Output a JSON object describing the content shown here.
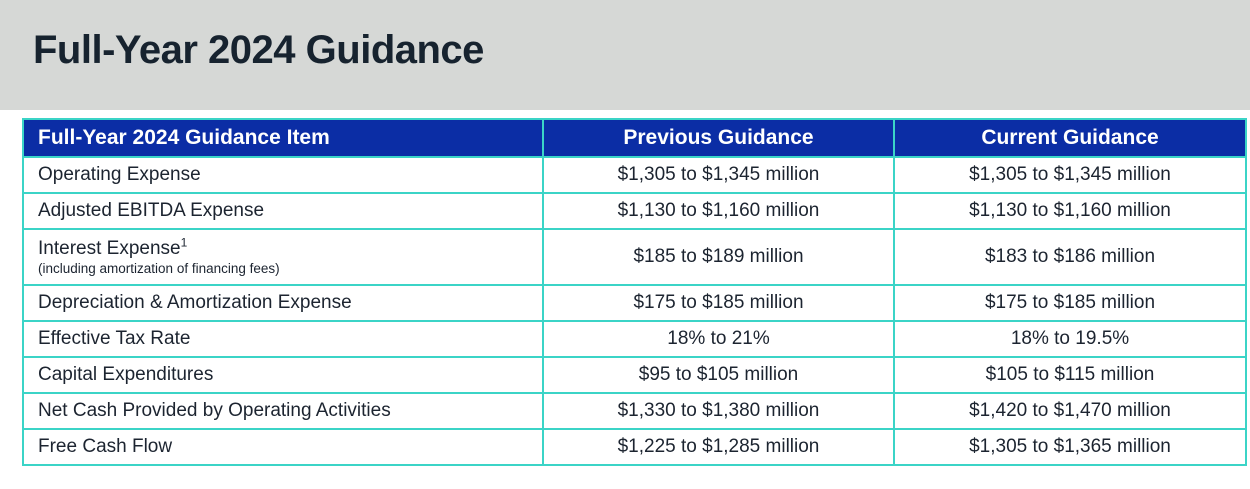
{
  "page": {
    "title": "Full-Year 2024 Guidance"
  },
  "table": {
    "headers": [
      "Full-Year 2024 Guidance Item",
      "Previous Guidance",
      "Current Guidance"
    ],
    "rows": [
      {
        "item": "Operating Expense",
        "previous": "$1,305 to $1,345 million",
        "current": "$1,305 to $1,345 million"
      },
      {
        "item": "Adjusted EBITDA Expense",
        "previous": "$1,130 to $1,160 million",
        "current": "$1,130 to $1,160 million"
      },
      {
        "item": "Interest Expense",
        "sup": "1",
        "note": "(including amortization of financing fees)",
        "previous": "$185 to $189 million",
        "current": "$183 to $186 million"
      },
      {
        "item": "Depreciation & Amortization Expense",
        "previous": "$175 to $185 million",
        "current": "$175 to $185 million"
      },
      {
        "item": "Effective Tax Rate",
        "previous": "18% to 21%",
        "current": "18% to 19.5%"
      },
      {
        "item": "Capital Expenditures",
        "previous": "$95 to $105 million",
        "current": "$105 to $115 million"
      },
      {
        "item": "Net Cash Provided by Operating Activities",
        "previous": "$1,330 to $1,380 million",
        "current": "$1,420 to $1,470 million"
      },
      {
        "item": "Free Cash Flow",
        "previous": "$1,225 to $1,285 million",
        "current": "$1,305 to $1,365 million"
      }
    ]
  },
  "colors": {
    "header_bg": "#0B2DA5",
    "table_border": "#3BD4C7",
    "banner_bg": "#D6D8D6",
    "title_text": "#17232F",
    "body_text": "#1C2430",
    "header_text": "#FFFFFF"
  }
}
